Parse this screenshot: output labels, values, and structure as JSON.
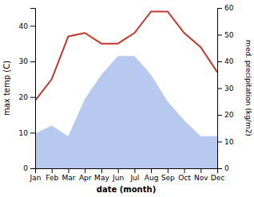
{
  "chart_data": {
    "type": "line",
    "x_label": "date (month)",
    "y_label": "max temp (C)",
    "y2_label": "med. precipitation (kg/m2)",
    "categories": [
      "Jan",
      "Feb",
      "Mar",
      "Apr",
      "May",
      "Jun",
      "Jul",
      "Aug",
      "Sep",
      "Oct",
      "Nov",
      "Dec"
    ],
    "series": [
      {
        "type": "area",
        "axis": "y2",
        "color": "#b8c9f0",
        "values": [
          13,
          16,
          12,
          26,
          35,
          42,
          42,
          35,
          25,
          18,
          12,
          12
        ]
      },
      {
        "type": "line",
        "color": "#c0392b",
        "values": [
          19,
          25,
          37,
          38,
          35,
          35,
          38,
          44,
          44,
          38,
          34,
          27
        ]
      }
    ],
    "ylim": [
      0,
      45
    ],
    "yticks": [
      0,
      10,
      20,
      30,
      40
    ],
    "y2lim": [
      0,
      60
    ],
    "y2ticks": [
      0,
      10,
      20,
      30,
      40,
      50,
      60
    ],
    "grid": false
  }
}
